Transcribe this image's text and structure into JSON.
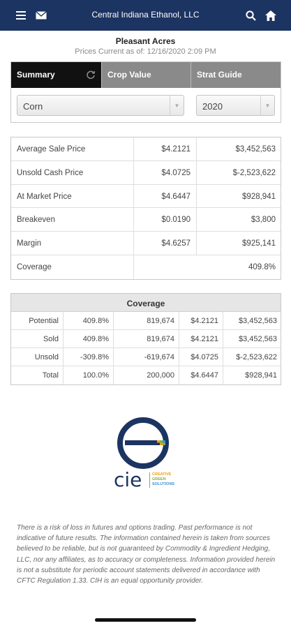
{
  "header": {
    "title": "Central Indiana Ethanol, LLC",
    "icons": [
      "menu-icon",
      "mail-icon",
      "search-icon",
      "home-icon"
    ]
  },
  "farm_name": "Pleasant Acres",
  "prices_current": "Prices Current as of: 12/16/2020 2:09 PM",
  "tabs": [
    {
      "label": "Summary",
      "active": true
    },
    {
      "label": "Crop Value",
      "active": false
    },
    {
      "label": "Strat Guide",
      "active": false
    }
  ],
  "crop_select": {
    "value": "Corn"
  },
  "year_select": {
    "value": "2020"
  },
  "price_table": [
    {
      "label": "Average Sale Price",
      "price": "$4.2121",
      "total": "$3,452,563"
    },
    {
      "label": "Unsold Cash Price",
      "price": "$4.0725",
      "total": "$-2,523,622"
    },
    {
      "label": "At Market Price",
      "price": "$4.6447",
      "total": "$928,941"
    },
    {
      "label": "Breakeven",
      "price": "$0.0190",
      "total": "$3,800"
    },
    {
      "label": "Margin",
      "price": "$4.6257",
      "total": "$925,141"
    },
    {
      "label": "Coverage",
      "price": "",
      "total": "409.8%"
    }
  ],
  "coverage": {
    "title": "Coverage",
    "rows": [
      {
        "label": "Potential",
        "pct": "409.8%",
        "qty": "819,674",
        "price": "$4.2121",
        "value": "$3,452,563"
      },
      {
        "label": "Sold",
        "pct": "409.8%",
        "qty": "819,674",
        "price": "$4.2121",
        "value": "$3,452,563"
      },
      {
        "label": "Unsold",
        "pct": "-309.8%",
        "qty": "-619,674",
        "price": "$4.0725",
        "value": "$-2,523,622"
      },
      {
        "label": "Total",
        "pct": "100.0%",
        "qty": "200,000",
        "price": "$4.6447",
        "value": "$928,941"
      }
    ]
  },
  "logo": {
    "wordmark": "cie",
    "tagline": [
      "CREATIVE",
      "GREEN",
      "SOLUTIONS"
    ],
    "colors": {
      "navy": "#1c3461",
      "green": "#7cb342",
      "orange": "#f39c12",
      "blue": "#3b8fd9"
    }
  },
  "disclaimer": "There is a risk of loss in futures and options trading. Past performance is not indicative of future results. The information contained herein is taken from sources believed to be reliable, but is not guaranteed by Commodity & Ingredient Hedging, LLC, nor any affiliates, as to accuracy or completeness. Information provided herein is not a substitute for periodic account statements delivered in accordance with CFTC Regulation 1.33. CIH is an equal opportunity provider.",
  "colors": {
    "header_bg": "#1c3461",
    "tab_active": "#111111",
    "tab_inactive": "#8a8a8a"
  }
}
